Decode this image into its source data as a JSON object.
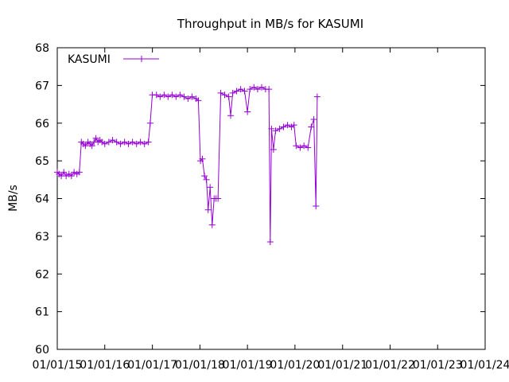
{
  "chart_data": {
    "type": "line",
    "title": "Throughput in MB/s for KASUMI",
    "xlabel": "",
    "ylabel": "MB/s",
    "ylim": [
      60,
      68
    ],
    "yticks": [
      60,
      61,
      62,
      63,
      64,
      65,
      66,
      67,
      68
    ],
    "xlim": [
      "2015-01-01",
      "2024-01-01"
    ],
    "xticks": [
      "01/01/15",
      "01/01/16",
      "01/01/17",
      "01/01/18",
      "01/01/19",
      "01/01/20",
      "01/01/21",
      "01/01/22",
      "01/01/23",
      "01/01/24"
    ],
    "grid": false,
    "legend_position": "top-left",
    "series": [
      {
        "name": "KASUMI",
        "color": "#9400d3",
        "marker": "plus",
        "points": [
          [
            "2015-01-01",
            64.7
          ],
          [
            "2015-01-15",
            64.65
          ],
          [
            "2015-02-01",
            64.6
          ],
          [
            "2015-02-20",
            64.7
          ],
          [
            "2015-03-10",
            64.6
          ],
          [
            "2015-04-01",
            64.65
          ],
          [
            "2015-04-20",
            64.6
          ],
          [
            "2015-05-10",
            64.7
          ],
          [
            "2015-06-01",
            64.65
          ],
          [
            "2015-06-20",
            64.7
          ],
          [
            "2015-07-05",
            65.5
          ],
          [
            "2015-07-20",
            65.45
          ],
          [
            "2015-08-05",
            65.4
          ],
          [
            "2015-08-25",
            65.5
          ],
          [
            "2015-09-10",
            65.45
          ],
          [
            "2015-09-25",
            65.4
          ],
          [
            "2015-10-10",
            65.5
          ],
          [
            "2015-10-25",
            65.6
          ],
          [
            "2015-11-10",
            65.5
          ],
          [
            "2015-11-25",
            65.55
          ],
          [
            "2015-12-10",
            65.5
          ],
          [
            "2016-01-01",
            65.45
          ],
          [
            "2016-02-01",
            65.5
          ],
          [
            "2016-03-01",
            65.55
          ],
          [
            "2016-04-01",
            65.5
          ],
          [
            "2016-05-01",
            65.45
          ],
          [
            "2016-06-01",
            65.5
          ],
          [
            "2016-07-01",
            65.45
          ],
          [
            "2016-08-01",
            65.5
          ],
          [
            "2016-09-01",
            65.45
          ],
          [
            "2016-10-01",
            65.5
          ],
          [
            "2016-11-01",
            65.45
          ],
          [
            "2016-12-01",
            65.5
          ],
          [
            "2016-12-15",
            66.0
          ],
          [
            "2016-12-31",
            66.75
          ],
          [
            "2017-02-01",
            66.75
          ],
          [
            "2017-03-01",
            66.7
          ],
          [
            "2017-04-01",
            66.75
          ],
          [
            "2017-05-01",
            66.7
          ],
          [
            "2017-06-01",
            66.75
          ],
          [
            "2017-07-01",
            66.7
          ],
          [
            "2017-08-01",
            66.75
          ],
          [
            "2017-09-01",
            66.7
          ],
          [
            "2017-10-01",
            66.65
          ],
          [
            "2017-11-01",
            66.7
          ],
          [
            "2017-12-01",
            66.65
          ],
          [
            "2017-12-20",
            66.6
          ],
          [
            "2018-01-05",
            65.0
          ],
          [
            "2018-01-20",
            65.05
          ],
          [
            "2018-02-05",
            64.6
          ],
          [
            "2018-02-20",
            64.5
          ],
          [
            "2018-03-05",
            63.7
          ],
          [
            "2018-03-20",
            64.3
          ],
          [
            "2018-04-05",
            63.3
          ],
          [
            "2018-04-20",
            64.0
          ],
          [
            "2018-05-05",
            64.0
          ],
          [
            "2018-05-20",
            64.0
          ],
          [
            "2018-06-10",
            66.8
          ],
          [
            "2018-07-10",
            66.75
          ],
          [
            "2018-08-10",
            66.7
          ],
          [
            "2018-08-25",
            66.2
          ],
          [
            "2018-09-10",
            66.8
          ],
          [
            "2018-10-10",
            66.85
          ],
          [
            "2018-11-10",
            66.9
          ],
          [
            "2018-12-10",
            66.85
          ],
          [
            "2019-01-01",
            66.3
          ],
          [
            "2019-01-20",
            66.9
          ],
          [
            "2019-02-20",
            66.95
          ],
          [
            "2019-03-20",
            66.9
          ],
          [
            "2019-04-20",
            66.95
          ],
          [
            "2019-05-20",
            66.9
          ],
          [
            "2019-06-15",
            66.9
          ],
          [
            "2019-06-25",
            62.85
          ],
          [
            "2019-07-05",
            65.85
          ],
          [
            "2019-07-20",
            65.3
          ],
          [
            "2019-08-05",
            65.8
          ],
          [
            "2019-09-05",
            65.85
          ],
          [
            "2019-10-05",
            65.9
          ],
          [
            "2019-11-05",
            65.95
          ],
          [
            "2019-12-05",
            65.9
          ],
          [
            "2019-12-25",
            65.95
          ],
          [
            "2020-01-10",
            65.4
          ],
          [
            "2020-02-10",
            65.35
          ],
          [
            "2020-03-10",
            65.4
          ],
          [
            "2020-04-10",
            65.35
          ],
          [
            "2020-05-05",
            65.9
          ],
          [
            "2020-05-25",
            66.1
          ],
          [
            "2020-06-10",
            63.8
          ],
          [
            "2020-06-20",
            66.7
          ]
        ]
      }
    ]
  }
}
